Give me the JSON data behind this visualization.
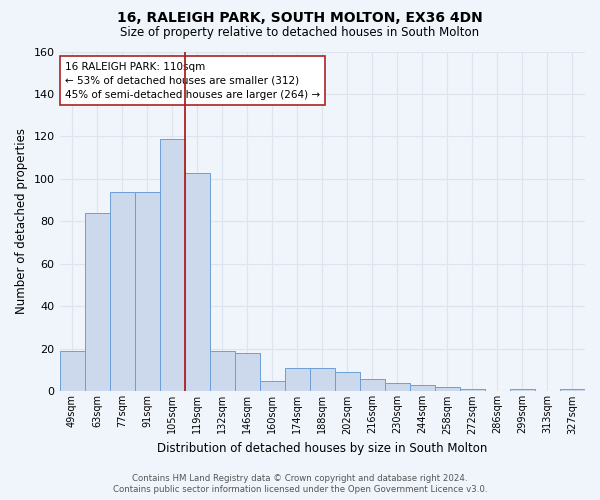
{
  "title1": "16, RALEIGH PARK, SOUTH MOLTON, EX36 4DN",
  "title2": "Size of property relative to detached houses in South Molton",
  "xlabel": "Distribution of detached houses by size in South Molton",
  "ylabel": "Number of detached properties",
  "bar_labels": [
    "49sqm",
    "63sqm",
    "77sqm",
    "91sqm",
    "105sqm",
    "119sqm",
    "132sqm",
    "146sqm",
    "160sqm",
    "174sqm",
    "188sqm",
    "202sqm",
    "216sqm",
    "230sqm",
    "244sqm",
    "258sqm",
    "272sqm",
    "286sqm",
    "299sqm",
    "313sqm",
    "327sqm"
  ],
  "bar_values": [
    19,
    84,
    94,
    94,
    119,
    103,
    19,
    18,
    5,
    11,
    11,
    9,
    6,
    4,
    3,
    2,
    1,
    0,
    1,
    0,
    1
  ],
  "bar_color": "#ccd9ed",
  "bar_edge_color": "#6a9fd8",
  "grid_color": "#dce4f0",
  "background_color": "#f0f4fb",
  "vline_bin_index": 4,
  "vline_color": "#aa2222",
  "annotation_text": "16 RALEIGH PARK: 110sqm\n← 53% of detached houses are smaller (312)\n45% of semi-detached houses are larger (264) →",
  "annotation_box_color": "#ffffff",
  "annotation_box_edge": "#aa2222",
  "footer1": "Contains HM Land Registry data © Crown copyright and database right 2024.",
  "footer2": "Contains public sector information licensed under the Open Government Licence v3.0.",
  "ylim": [
    0,
    160
  ],
  "yticks": [
    0,
    20,
    40,
    60,
    80,
    100,
    120,
    140,
    160
  ]
}
